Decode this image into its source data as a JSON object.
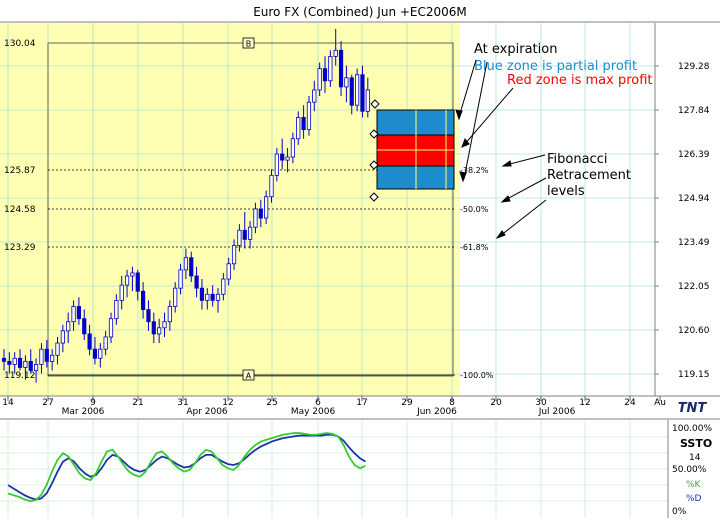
{
  "title": "Euro FX (Combined) Jun +EC2006M",
  "markers": {
    "b": "B",
    "a": "A"
  },
  "annotations": {
    "at_expiration": "At expiration",
    "blue_zone": "Blue zone is partial profit",
    "red_zone": "Red zone is max profit",
    "fib_line1": "Fibonacci",
    "fib_line2": "Retracement",
    "fib_line3": "levels"
  },
  "colors": {
    "plot_bg": "#ffffb3",
    "right_bg": "#ffffff",
    "grid": "#90d8d0",
    "candle": "#0000cc",
    "blue_zone": "#1e8bcc",
    "red_zone": "#ff0000",
    "blue_text": "#1e8bcc",
    "red_text": "#ff0000",
    "k_line": "#33cc33",
    "d_line": "#1a33aa",
    "lower_bg": "#ffffff",
    "lower_grid": "#b8e8c0"
  },
  "chart_data": {
    "type": "candlestick",
    "left_axis_labels": [
      "130.04",
      "125.87",
      "124.58",
      "123.29",
      "119.12"
    ],
    "right_axis_ticks": [
      "129.28",
      "127.84",
      "126.39",
      "124.94",
      "123.49",
      "122.05",
      "120.60",
      "119.15"
    ],
    "x_day_labels": [
      "14",
      "27",
      "9",
      "21",
      "31",
      "12",
      "25",
      "6",
      "17",
      "29",
      "8",
      "20",
      "30",
      "12",
      "24",
      "Au"
    ],
    "x_month_labels": [
      "Mar 2006",
      "Apr 2006",
      "May 2006",
      "Jun 2006",
      "Jul 2006"
    ],
    "fib_levels": [
      {
        "label": "38.2%",
        "price": 125.87
      },
      {
        "label": "50.0%",
        "price": 124.58
      },
      {
        "label": "61.8%",
        "price": 123.29
      },
      {
        "label": "100.0%",
        "price": 119.12
      }
    ],
    "ylim": [
      118.9,
      130.8
    ],
    "candles": [
      [
        0,
        119.7,
        120.0,
        119.3,
        119.6
      ],
      [
        1,
        119.6,
        119.9,
        119.2,
        119.5
      ],
      [
        2,
        119.5,
        119.9,
        119.2,
        119.7
      ],
      [
        3,
        119.7,
        120.0,
        119.3,
        119.4
      ],
      [
        4,
        119.4,
        119.8,
        119.0,
        119.6
      ],
      [
        5,
        119.6,
        120.0,
        119.2,
        119.3
      ],
      [
        6,
        119.3,
        119.7,
        118.9,
        119.5
      ],
      [
        7,
        119.5,
        120.2,
        119.2,
        120.0
      ],
      [
        8,
        120.0,
        120.3,
        119.4,
        119.6
      ],
      [
        9,
        119.6,
        120.0,
        119.3,
        119.8
      ],
      [
        10,
        119.8,
        120.4,
        119.5,
        120.2
      ],
      [
        11,
        120.2,
        120.8,
        119.9,
        120.6
      ],
      [
        12,
        120.6,
        121.2,
        120.2,
        120.9
      ],
      [
        13,
        120.9,
        121.6,
        120.6,
        121.4
      ],
      [
        14,
        121.4,
        121.7,
        120.8,
        121.0
      ],
      [
        15,
        121.0,
        121.3,
        120.3,
        120.5
      ],
      [
        16,
        120.5,
        120.8,
        119.8,
        120.0
      ],
      [
        17,
        120.0,
        120.4,
        119.5,
        119.7
      ],
      [
        18,
        119.7,
        120.2,
        119.4,
        120.0
      ],
      [
        19,
        120.0,
        120.6,
        119.8,
        120.4
      ],
      [
        20,
        120.4,
        121.2,
        120.2,
        121.0
      ],
      [
        21,
        121.0,
        121.8,
        120.8,
        121.6
      ],
      [
        22,
        121.6,
        122.4,
        121.3,
        122.1
      ],
      [
        23,
        122.1,
        122.6,
        121.7,
        122.4
      ],
      [
        24,
        122.4,
        122.7,
        121.9,
        122.5
      ],
      [
        25,
        122.5,
        122.6,
        121.6,
        121.9
      ],
      [
        26,
        121.9,
        122.2,
        121.0,
        121.3
      ],
      [
        27,
        121.3,
        121.6,
        120.6,
        120.9
      ],
      [
        28,
        120.9,
        121.2,
        120.2,
        120.5
      ],
      [
        29,
        120.5,
        121.0,
        120.2,
        120.7
      ],
      [
        30,
        120.7,
        121.2,
        120.4,
        120.9
      ],
      [
        31,
        120.9,
        121.6,
        120.6,
        121.4
      ],
      [
        32,
        121.4,
        122.2,
        121.2,
        122.0
      ],
      [
        33,
        122.0,
        122.8,
        121.8,
        122.6
      ],
      [
        34,
        122.6,
        123.3,
        122.3,
        123.0
      ],
      [
        35,
        123.0,
        123.2,
        122.2,
        122.4
      ],
      [
        36,
        122.4,
        122.7,
        121.7,
        122.0
      ],
      [
        37,
        122.0,
        122.3,
        121.3,
        121.6
      ],
      [
        38,
        121.6,
        122.0,
        121.3,
        121.8
      ],
      [
        39,
        121.8,
        122.1,
        121.4,
        121.6
      ],
      [
        40,
        121.6,
        122.0,
        121.2,
        121.8
      ],
      [
        41,
        121.8,
        122.5,
        121.6,
        122.3
      ],
      [
        42,
        122.3,
        123.0,
        122.1,
        122.8
      ],
      [
        43,
        122.8,
        123.6,
        122.6,
        123.4
      ],
      [
        44,
        123.4,
        124.1,
        123.2,
        123.9
      ],
      [
        45,
        123.9,
        124.5,
        123.3,
        123.6
      ],
      [
        46,
        123.6,
        124.2,
        123.3,
        124.0
      ],
      [
        47,
        124.0,
        124.8,
        123.8,
        124.6
      ],
      [
        48,
        124.6,
        124.9,
        124.0,
        124.3
      ],
      [
        49,
        124.3,
        125.2,
        124.1,
        125.0
      ],
      [
        50,
        125.0,
        125.9,
        124.8,
        125.7
      ],
      [
        51,
        125.7,
        126.6,
        125.5,
        126.4
      ],
      [
        52,
        126.4,
        126.9,
        125.9,
        126.2
      ],
      [
        53,
        126.2,
        126.6,
        125.8,
        126.3
      ],
      [
        54,
        126.3,
        127.1,
        126.1,
        126.9
      ],
      [
        55,
        126.9,
        127.8,
        126.7,
        127.6
      ],
      [
        56,
        127.6,
        128.0,
        126.9,
        127.2
      ],
      [
        57,
        127.2,
        128.3,
        127.0,
        128.1
      ],
      [
        58,
        128.1,
        128.8,
        127.8,
        128.5
      ],
      [
        59,
        128.5,
        129.4,
        128.3,
        129.2
      ],
      [
        60,
        129.2,
        129.6,
        128.4,
        128.8
      ],
      [
        61,
        128.8,
        129.8,
        128.6,
        129.6
      ],
      [
        62,
        129.6,
        130.5,
        129.3,
        129.8
      ],
      [
        63,
        129.8,
        130.1,
        128.3,
        128.6
      ],
      [
        64,
        128.6,
        129.3,
        128.1,
        128.9
      ],
      [
        65,
        128.9,
        129.0,
        127.7,
        128.0
      ],
      [
        66,
        128.0,
        129.2,
        127.8,
        129.0
      ],
      [
        67,
        129.0,
        129.3,
        127.6,
        127.8
      ],
      [
        68,
        127.8,
        128.9,
        127.6,
        128.5
      ]
    ],
    "lower_panel": {
      "name": "SSTO",
      "period": "14",
      "series_names": [
        "%K",
        "%D"
      ],
      "axis_labels": [
        "100.00%",
        "50.00%",
        "0%"
      ],
      "k": [
        22,
        20,
        18,
        15,
        13,
        14,
        20,
        32,
        48,
        62,
        70,
        66,
        56,
        46,
        40,
        38,
        46,
        60,
        72,
        74,
        66,
        56,
        48,
        44,
        42,
        48,
        60,
        70,
        72,
        66,
        58,
        52,
        48,
        50,
        58,
        68,
        74,
        72,
        64,
        56,
        52,
        50,
        56,
        66,
        74,
        80,
        84,
        86,
        88,
        90,
        92,
        93,
        94,
        94,
        93,
        92,
        92,
        93,
        94,
        93,
        90,
        80,
        66,
        56,
        52,
        55
      ],
      "d": [
        32,
        28,
        24,
        20,
        17,
        15,
        16,
        22,
        34,
        48,
        60,
        64,
        60,
        52,
        46,
        42,
        44,
        52,
        62,
        68,
        66,
        60,
        54,
        50,
        48,
        50,
        56,
        62,
        66,
        64,
        60,
        56,
        53,
        54,
        58,
        64,
        68,
        68,
        64,
        60,
        57,
        56,
        58,
        63,
        69,
        74,
        78,
        81,
        84,
        86,
        88,
        89,
        90,
        91,
        91,
        91,
        91,
        91,
        92,
        92,
        90,
        85,
        77,
        70,
        64,
        60
      ]
    }
  }
}
